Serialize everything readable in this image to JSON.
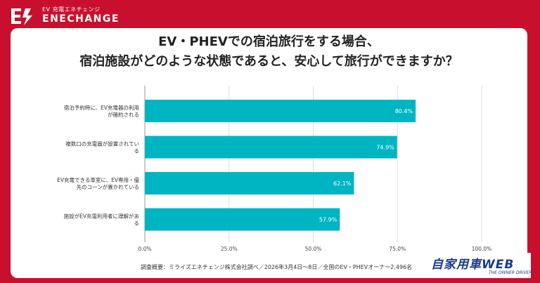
{
  "brand": {
    "subtitle": "EV 充電エネチェンジ",
    "name": "ENECHANGE"
  },
  "title": {
    "line1": "EV・PHEVでの宿泊旅行をする場合、",
    "line2": "宿泊施設がどのような状態であると、安心して旅行ができますか？"
  },
  "chart_data": {
    "type": "bar",
    "orientation": "horizontal",
    "categories": [
      "宿泊予約時に、EV充電器の利用が確約される",
      "複数口の充電器が設置されている",
      "EV充電できる車室に、EV専用・優先のコーンが置かれている",
      "施設がEV充電利用者に理解がある"
    ],
    "category_lines": [
      [
        "宿泊予約時に、EV充電器の利用",
        "が確約される"
      ],
      [
        "複数口の充電器が設置されてい",
        "る"
      ],
      [
        "EV充電できる車室に、EV専用・優",
        "先のコーンが置かれている"
      ],
      [
        "施設がEV充電利用者に理解があ",
        "る"
      ]
    ],
    "values": [
      80.4,
      74.9,
      62.1,
      57.9
    ],
    "value_labels": [
      "80.4%",
      "74.9%",
      "62.1%",
      "57.9%"
    ],
    "xlim": [
      0,
      100
    ],
    "ticks": [
      0,
      25,
      50,
      75,
      100
    ],
    "tick_labels": [
      "0.0%",
      "25.0%",
      "50.0%",
      "75.0%",
      "100.0%"
    ],
    "bar_color": "#00b5c2",
    "grid": true
  },
  "footer": {
    "note": "調査概要：ミライズエネチェンジ株式会社調べ／2026年3月4日〜8日／全国のEV・PHEVオーナー2,496名"
  },
  "badge": {
    "name": "自家用車WEB",
    "tagline": "THE OWNER DRIVER"
  },
  "colors": {
    "background": "#c8102e",
    "card": "#ffffff",
    "badge_text": "#1a3a8c"
  }
}
